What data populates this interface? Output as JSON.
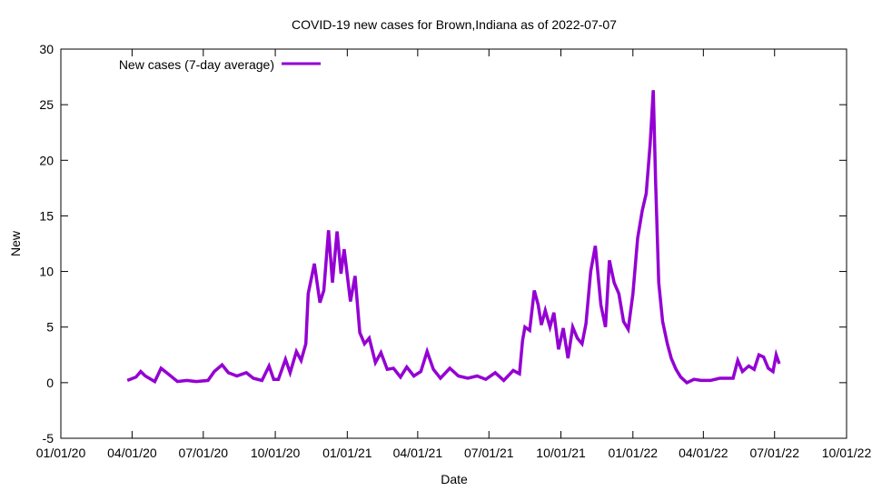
{
  "chart_data": {
    "type": "line",
    "title": "COVID-19 new cases for Brown,Indiana as of 2022-07-07",
    "xlabel": "Date",
    "ylabel": "New",
    "xlim": [
      "2020-01-01",
      "2022-10-01"
    ],
    "ylim": [
      -5,
      30
    ],
    "x_ticks": [
      {
        "date": "2020-01-01",
        "label": "01/01/20"
      },
      {
        "date": "2020-04-01",
        "label": "04/01/20"
      },
      {
        "date": "2020-07-01",
        "label": "07/01/20"
      },
      {
        "date": "2020-10-01",
        "label": "10/01/20"
      },
      {
        "date": "2021-01-01",
        "label": "01/01/21"
      },
      {
        "date": "2021-04-01",
        "label": "04/01/21"
      },
      {
        "date": "2021-07-01",
        "label": "07/01/21"
      },
      {
        "date": "2021-10-01",
        "label": "10/01/21"
      },
      {
        "date": "2022-01-01",
        "label": "01/01/22"
      },
      {
        "date": "2022-04-01",
        "label": "04/01/22"
      },
      {
        "date": "2022-07-01",
        "label": "07/01/22"
      },
      {
        "date": "2022-10-01",
        "label": "10/01/22"
      }
    ],
    "y_ticks": [
      -5,
      0,
      5,
      10,
      15,
      20,
      25,
      30
    ],
    "grid": false,
    "legend_position": "top-left",
    "series": [
      {
        "name": "New cases (7-day average)",
        "color": "#9400d3",
        "points": [
          [
            "2020-03-26",
            0.2
          ],
          [
            "2020-04-06",
            0.5
          ],
          [
            "2020-04-12",
            1.0
          ],
          [
            "2020-04-18",
            0.6
          ],
          [
            "2020-04-30",
            0.1
          ],
          [
            "2020-05-08",
            1.3
          ],
          [
            "2020-05-17",
            0.8
          ],
          [
            "2020-05-29",
            0.1
          ],
          [
            "2020-06-10",
            0.2
          ],
          [
            "2020-06-22",
            0.1
          ],
          [
            "2020-07-07",
            0.2
          ],
          [
            "2020-07-15",
            1.0
          ],
          [
            "2020-07-25",
            1.6
          ],
          [
            "2020-08-02",
            0.9
          ],
          [
            "2020-08-13",
            0.6
          ],
          [
            "2020-08-25",
            0.9
          ],
          [
            "2020-09-03",
            0.4
          ],
          [
            "2020-09-14",
            0.2
          ],
          [
            "2020-09-23",
            1.5
          ],
          [
            "2020-09-29",
            0.3
          ],
          [
            "2020-10-05",
            0.3
          ],
          [
            "2020-10-14",
            2.1
          ],
          [
            "2020-10-20",
            0.9
          ],
          [
            "2020-10-28",
            2.8
          ],
          [
            "2020-11-03",
            2.0
          ],
          [
            "2020-11-09",
            3.5
          ],
          [
            "2020-11-12",
            8.0
          ],
          [
            "2020-11-20",
            10.7
          ],
          [
            "2020-11-27",
            7.2
          ],
          [
            "2020-12-02",
            8.3
          ],
          [
            "2020-12-08",
            13.7
          ],
          [
            "2020-12-13",
            9.0
          ],
          [
            "2020-12-19",
            13.6
          ],
          [
            "2020-12-24",
            9.8
          ],
          [
            "2020-12-28",
            12.0
          ],
          [
            "2021-01-05",
            7.3
          ],
          [
            "2021-01-11",
            9.6
          ],
          [
            "2021-01-17",
            4.5
          ],
          [
            "2021-01-23",
            3.5
          ],
          [
            "2021-01-29",
            4.0
          ],
          [
            "2021-02-06",
            1.8
          ],
          [
            "2021-02-13",
            2.7
          ],
          [
            "2021-02-21",
            1.2
          ],
          [
            "2021-03-01",
            1.3
          ],
          [
            "2021-03-10",
            0.5
          ],
          [
            "2021-03-18",
            1.4
          ],
          [
            "2021-03-27",
            0.6
          ],
          [
            "2021-04-05",
            1.0
          ],
          [
            "2021-04-13",
            2.8
          ],
          [
            "2021-04-21",
            1.2
          ],
          [
            "2021-04-30",
            0.4
          ],
          [
            "2021-05-12",
            1.3
          ],
          [
            "2021-05-23",
            0.6
          ],
          [
            "2021-06-04",
            0.4
          ],
          [
            "2021-06-16",
            0.6
          ],
          [
            "2021-06-27",
            0.3
          ],
          [
            "2021-07-09",
            0.9
          ],
          [
            "2021-07-20",
            0.2
          ],
          [
            "2021-08-01",
            1.1
          ],
          [
            "2021-08-09",
            0.8
          ],
          [
            "2021-08-13",
            3.8
          ],
          [
            "2021-08-16",
            5.0
          ],
          [
            "2021-08-22",
            4.7
          ],
          [
            "2021-08-28",
            8.3
          ],
          [
            "2021-09-02",
            7.0
          ],
          [
            "2021-09-06",
            5.2
          ],
          [
            "2021-09-11",
            6.5
          ],
          [
            "2021-09-17",
            5.0
          ],
          [
            "2021-09-22",
            6.3
          ],
          [
            "2021-09-28",
            3.0
          ],
          [
            "2021-10-04",
            4.9
          ],
          [
            "2021-10-10",
            2.2
          ],
          [
            "2021-10-16",
            5.0
          ],
          [
            "2021-10-22",
            4.0
          ],
          [
            "2021-10-28",
            3.5
          ],
          [
            "2021-11-02",
            5.3
          ],
          [
            "2021-11-08",
            10.0
          ],
          [
            "2021-11-14",
            12.3
          ],
          [
            "2021-11-21",
            7.0
          ],
          [
            "2021-11-27",
            5.0
          ],
          [
            "2021-12-02",
            11.0
          ],
          [
            "2021-12-08",
            9.0
          ],
          [
            "2021-12-14",
            8.0
          ],
          [
            "2021-12-20",
            5.5
          ],
          [
            "2021-12-26",
            4.8
          ],
          [
            "2022-01-01",
            8.0
          ],
          [
            "2022-01-07",
            13.0
          ],
          [
            "2022-01-13",
            15.5
          ],
          [
            "2022-01-18",
            17.0
          ],
          [
            "2022-01-23",
            21.5
          ],
          [
            "2022-01-27",
            26.3
          ],
          [
            "2022-01-30",
            18.0
          ],
          [
            "2022-02-03",
            9.0
          ],
          [
            "2022-02-08",
            5.5
          ],
          [
            "2022-02-14",
            3.5
          ],
          [
            "2022-02-19",
            2.2
          ],
          [
            "2022-02-25",
            1.2
          ],
          [
            "2022-03-03",
            0.5
          ],
          [
            "2022-03-11",
            0.0
          ],
          [
            "2022-03-20",
            0.3
          ],
          [
            "2022-03-29",
            0.2
          ],
          [
            "2022-04-10",
            0.2
          ],
          [
            "2022-04-22",
            0.4
          ],
          [
            "2022-05-09",
            0.4
          ],
          [
            "2022-05-15",
            2.0
          ],
          [
            "2022-05-21",
            1.0
          ],
          [
            "2022-05-29",
            1.5
          ],
          [
            "2022-06-05",
            1.2
          ],
          [
            "2022-06-11",
            2.5
          ],
          [
            "2022-06-17",
            2.3
          ],
          [
            "2022-06-23",
            1.3
          ],
          [
            "2022-06-29",
            1.0
          ],
          [
            "2022-07-03",
            2.5
          ],
          [
            "2022-07-07",
            1.7
          ]
        ]
      }
    ]
  }
}
